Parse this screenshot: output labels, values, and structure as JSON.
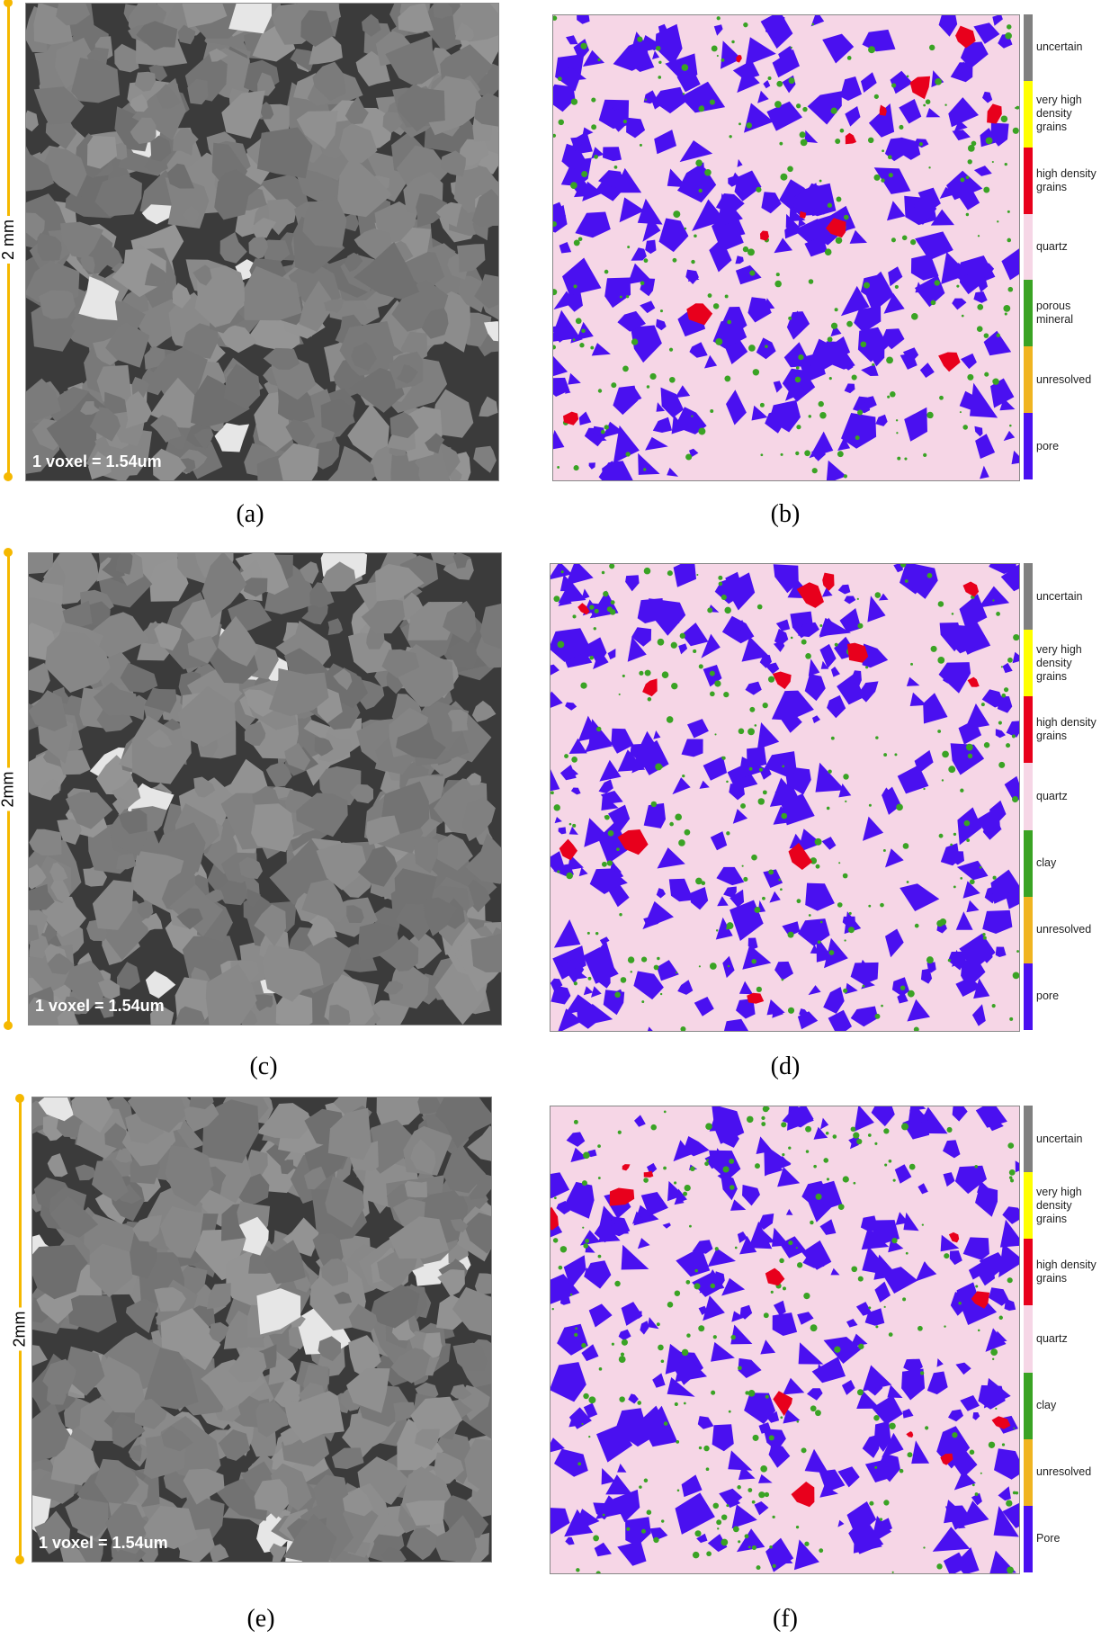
{
  "panels": [
    {
      "label": "(a)",
      "scale_bar": "2 mm",
      "voxel_note": "1 voxel = 1.54um"
    },
    {
      "label": "(b)",
      "legend": [
        "uncertain",
        "very high density grains",
        "high density grains",
        "quartz",
        "porous mineral",
        "unresolved",
        "pore"
      ]
    },
    {
      "label": "(c)",
      "scale_bar": "2mm",
      "voxel_note": "1 voxel = 1.54um"
    },
    {
      "label": "(d)",
      "legend": [
        "uncertain",
        "very high density grains",
        "high density grains",
        "quartz",
        "clay",
        "unresolved",
        "pore"
      ]
    },
    {
      "label": "(e)",
      "scale_bar": "2mm",
      "voxel_note": "1 voxel = 1.54um"
    },
    {
      "label": "(f)",
      "legend": [
        "uncertain",
        "very high density grains",
        "high density grains",
        "quartz",
        "clay",
        "unresolved",
        "Pore"
      ]
    }
  ]
}
